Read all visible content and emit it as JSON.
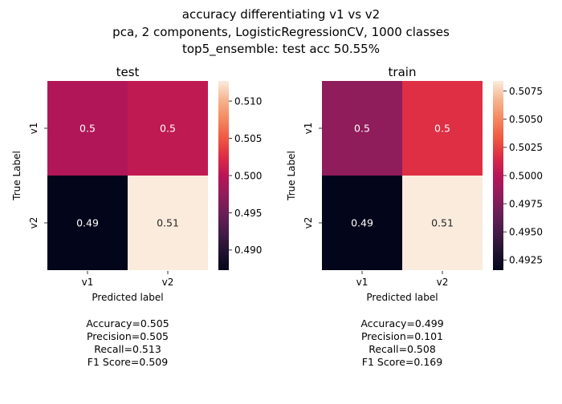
{
  "figure": {
    "title_lines": [
      "accuracy differentiating v1 vs v2",
      "pca, 2 components, LogisticRegressionCV, 1000 classes",
      "top5_ensemble: test acc 50.55%"
    ]
  },
  "chart_data": [
    {
      "type": "heatmap",
      "title": "test",
      "xlabel": "Predicted label",
      "ylabel": "True Label",
      "x_categories": [
        "v1",
        "v2"
      ],
      "y_categories": [
        "v1",
        "v2"
      ],
      "values": [
        [
          0.5,
          0.5
        ],
        [
          0.49,
          0.51
        ]
      ],
      "cell_values": [
        [
          0.4995,
          0.5005
        ],
        [
          0.4873,
          0.5127
        ]
      ],
      "annotations": [
        [
          "0.5",
          "0.5"
        ],
        [
          "0.49",
          "0.51"
        ]
      ],
      "colorbar": {
        "range": [
          0.4873,
          0.5127
        ],
        "ticks": [
          0.49,
          0.495,
          0.5,
          0.505,
          0.51
        ],
        "tick_labels": [
          "0.490",
          "0.495",
          "0.500",
          "0.505",
          "0.510"
        ]
      },
      "metrics": [
        "Accuracy=0.505",
        "Precision=0.505",
        "Recall=0.513",
        "F1 Score=0.509"
      ]
    },
    {
      "type": "heatmap",
      "title": "train",
      "xlabel": "Predicted label",
      "ylabel": "True Label",
      "x_categories": [
        "v1",
        "v2"
      ],
      "y_categories": [
        "v1",
        "v2"
      ],
      "values": [
        [
          0.5,
          0.5
        ],
        [
          0.49,
          0.51
        ]
      ],
      "cell_values": [
        [
          0.4982,
          0.5018
        ],
        [
          0.4916,
          0.5084
        ]
      ],
      "annotations": [
        [
          "0.5",
          "0.5"
        ],
        [
          "0.49",
          "0.51"
        ]
      ],
      "colorbar": {
        "range": [
          0.4916,
          0.5084
        ],
        "ticks": [
          0.4925,
          0.495,
          0.4975,
          0.5,
          0.5025,
          0.505,
          0.5075
        ],
        "tick_labels": [
          "0.4925",
          "0.4950",
          "0.4975",
          "0.5000",
          "0.5025",
          "0.5050",
          "0.5075"
        ]
      },
      "metrics": [
        "Accuracy=0.499",
        "Precision=0.101",
        "Recall=0.508",
        "F1 Score=0.169"
      ]
    }
  ]
}
